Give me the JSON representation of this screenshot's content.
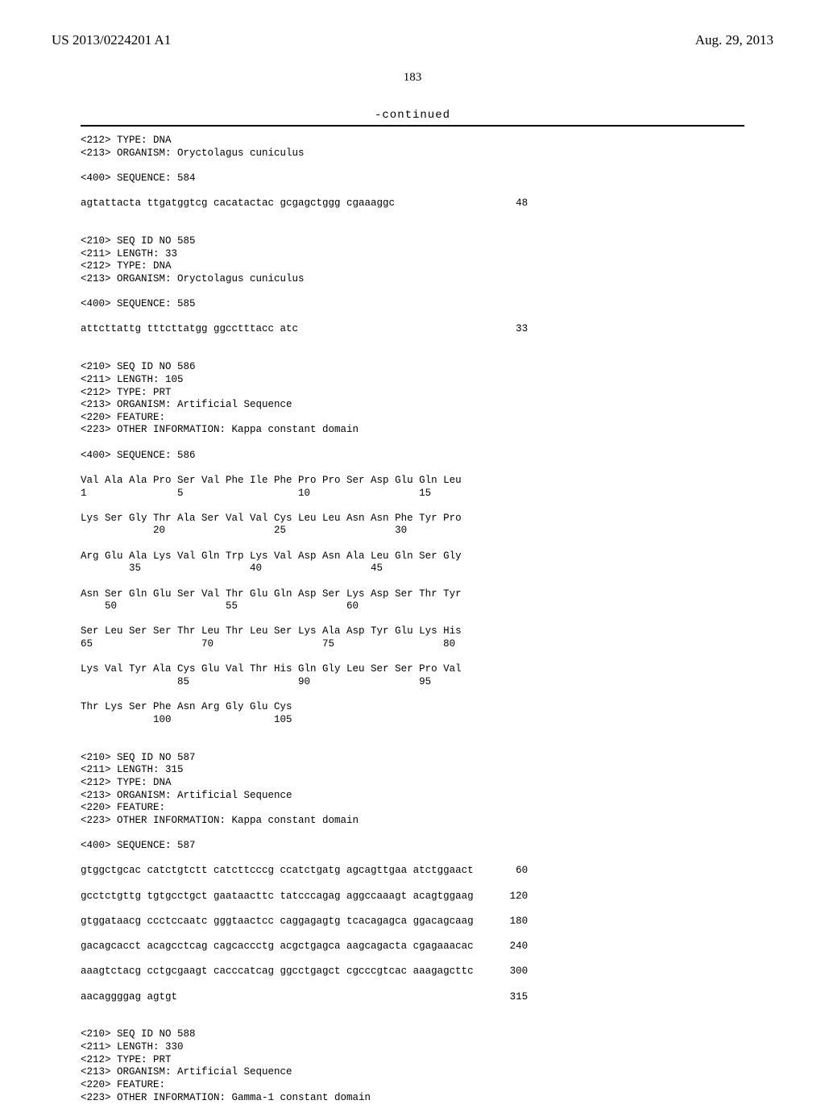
{
  "header": {
    "pubNumber": "US 2013/0224201 A1",
    "pubDate": "Aug. 29, 2013"
  },
  "pageNumber": "183",
  "continuedLabel": "-continued",
  "entries": [
    {
      "tailMeta": "<212> TYPE: DNA\n<213> ORGANISM: Oryctolagus cuniculus",
      "seqLabel": "<400> SEQUENCE: 584",
      "sequenceLines": [
        {
          "text": "agtattacta ttgatggtcg cacatactac gcgagctggg cgaaaggc",
          "num": "48"
        }
      ]
    },
    {
      "meta": "<210> SEQ ID NO 585\n<211> LENGTH: 33\n<212> TYPE: DNA\n<213> ORGANISM: Oryctolagus cuniculus",
      "seqLabel": "<400> SEQUENCE: 585",
      "sequenceLines": [
        {
          "text": "attcttattg tttcttatgg ggcctttacc atc",
          "num": "33"
        }
      ]
    },
    {
      "meta": "<210> SEQ ID NO 586\n<211> LENGTH: 105\n<212> TYPE: PRT\n<213> ORGANISM: Artificial Sequence\n<220> FEATURE:\n<223> OTHER INFORMATION: Kappa constant domain",
      "seqLabel": "<400> SEQUENCE: 586",
      "proteinBlocks": [
        {
          "res": "Val Ala Ala Pro Ser Val Phe Ile Phe Pro Pro Ser Asp Glu Gln Leu",
          "nums": "1               5                   10                  15"
        },
        {
          "res": "Lys Ser Gly Thr Ala Ser Val Val Cys Leu Leu Asn Asn Phe Tyr Pro",
          "nums": "            20                  25                  30"
        },
        {
          "res": "Arg Glu Ala Lys Val Gln Trp Lys Val Asp Asn Ala Leu Gln Ser Gly",
          "nums": "        35                  40                  45"
        },
        {
          "res": "Asn Ser Gln Glu Ser Val Thr Glu Gln Asp Ser Lys Asp Ser Thr Tyr",
          "nums": "    50                  55                  60"
        },
        {
          "res": "Ser Leu Ser Ser Thr Leu Thr Leu Ser Lys Ala Asp Tyr Glu Lys His",
          "nums": "65                  70                  75                  80"
        },
        {
          "res": "Lys Val Tyr Ala Cys Glu Val Thr His Gln Gly Leu Ser Ser Pro Val",
          "nums": "                85                  90                  95"
        },
        {
          "res": "Thr Lys Ser Phe Asn Arg Gly Glu Cys",
          "nums": "            100                 105"
        }
      ]
    },
    {
      "meta": "<210> SEQ ID NO 587\n<211> LENGTH: 315\n<212> TYPE: DNA\n<213> ORGANISM: Artificial Sequence\n<220> FEATURE:\n<223> OTHER INFORMATION: Kappa constant domain",
      "seqLabel": "<400> SEQUENCE: 587",
      "sequenceLines": [
        {
          "text": "gtggctgcac catctgtctt catcttcccg ccatctgatg agcagttgaa atctggaact",
          "num": "60"
        },
        {
          "text": "gcctctgttg tgtgcctgct gaataacttc tatcccagag aggccaaagt acagtggaag",
          "num": "120"
        },
        {
          "text": "gtggataacg ccctccaatc gggtaactcc caggagagtg tcacagagca ggacagcaag",
          "num": "180"
        },
        {
          "text": "gacagcacct acagcctcag cagcaccctg acgctgagca aagcagacta cgagaaacac",
          "num": "240"
        },
        {
          "text": "aaagtctacg cctgcgaagt cacccatcag ggcctgagct cgcccgtcac aaagagcttc",
          "num": "300"
        },
        {
          "text": "aacaggggag agtgt",
          "num": "315"
        }
      ]
    },
    {
      "meta": "<210> SEQ ID NO 588\n<211> LENGTH: 330\n<212> TYPE: PRT\n<213> ORGANISM: Artificial Sequence\n<220> FEATURE:\n<223> OTHER INFORMATION: Gamma-1 constant domain"
    }
  ],
  "layout": {
    "numColumn": 70
  }
}
